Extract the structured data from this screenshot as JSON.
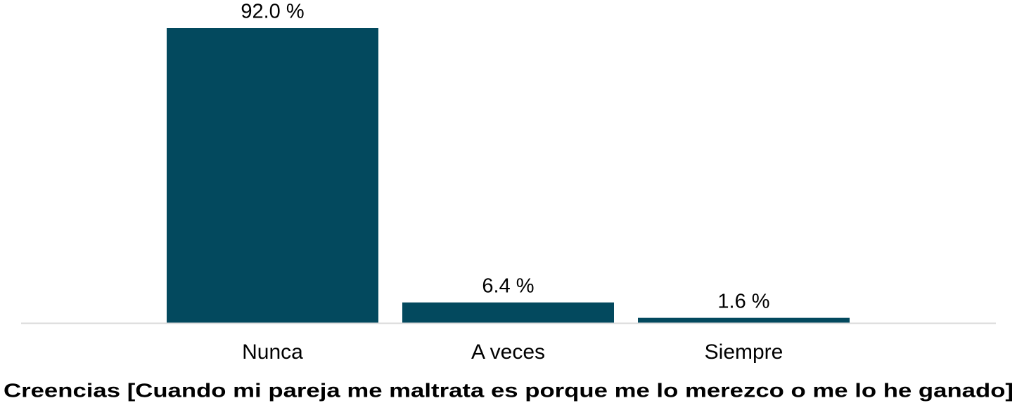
{
  "chart_data": {
    "type": "bar",
    "xlabel": "Creencias [Cuando mi pareja me maltrata es porque me lo merezco o me lo he ganado]",
    "categories": [
      "Nunca",
      "A veces",
      "Siempre"
    ],
    "values": [
      92.0,
      6.4,
      1.6
    ],
    "value_labels": [
      "92.0 %",
      "6.4 %",
      "1.6 %"
    ],
    "color": "#03495e"
  }
}
